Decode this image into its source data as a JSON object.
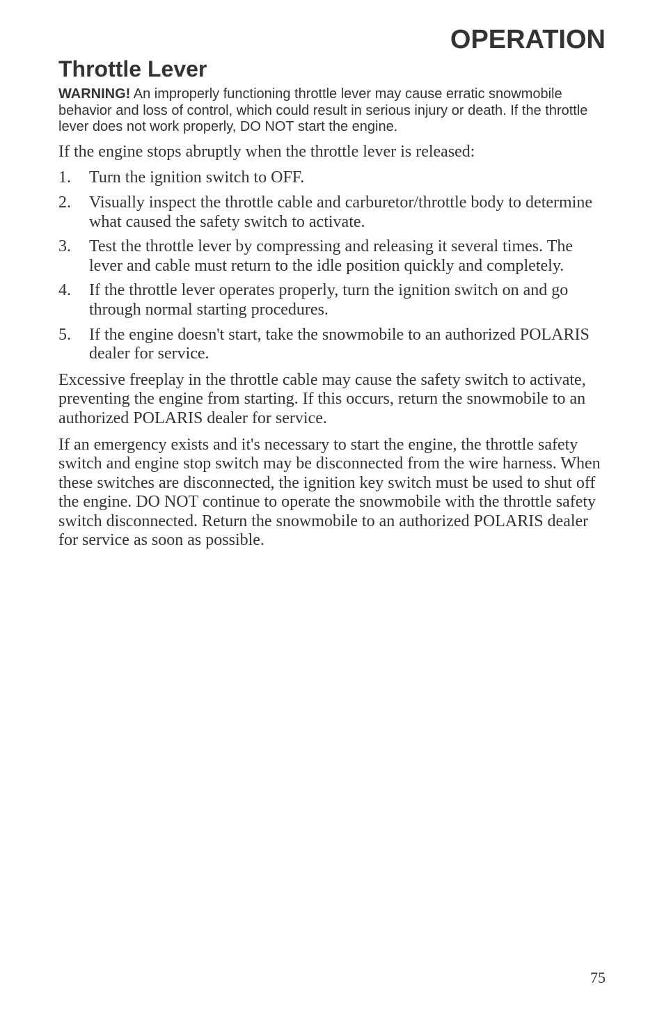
{
  "chapter_title": "OPERATION",
  "section_title": "Throttle Lever",
  "warning": {
    "label": "WARNING!",
    "text": "An improperly functioning throttle lever may cause erratic snowmobile behavior and loss of control, which could result in serious injury or death. If the throttle lever does not work properly, DO NOT start the engine."
  },
  "intro": "If the engine stops abruptly when the throttle lever is released:",
  "steps": [
    "Turn the ignition switch to OFF.",
    "Visually inspect the throttle cable and carburetor/throttle body to determine what caused the safety switch to activate.",
    "Test the throttle lever by compressing and releasing it several times. The lever and cable must return to the idle position quickly and completely.",
    "If the throttle lever operates properly, turn the ignition switch on and go through normal starting procedures.",
    "If the engine doesn't start, take the snowmobile to an authorized POLARIS dealer for service."
  ],
  "para1": "Excessive freeplay in the throttle cable may cause the safety switch to activate, preventing the engine from starting. If this occurs, return the snowmobile to an authorized POLARIS dealer for service.",
  "para2": "If an emergency exists and it's necessary to start the engine, the throttle safety switch and engine stop switch may be disconnected from the wire harness. When these switches are disconnected, the ignition key switch must be used to shut off the engine. DO NOT continue to operate the snowmobile with the throttle safety switch disconnected. Return the snowmobile to an authorized POLARIS dealer for service as soon as possible.",
  "page_number": "75",
  "style": {
    "chapter_title_fontsize": 38,
    "section_title_fontsize": 32,
    "warning_fontsize": 20,
    "body_fontsize": 24,
    "pagenum_fontsize": 22,
    "text_color": "#333333",
    "background_color": "#ffffff"
  }
}
